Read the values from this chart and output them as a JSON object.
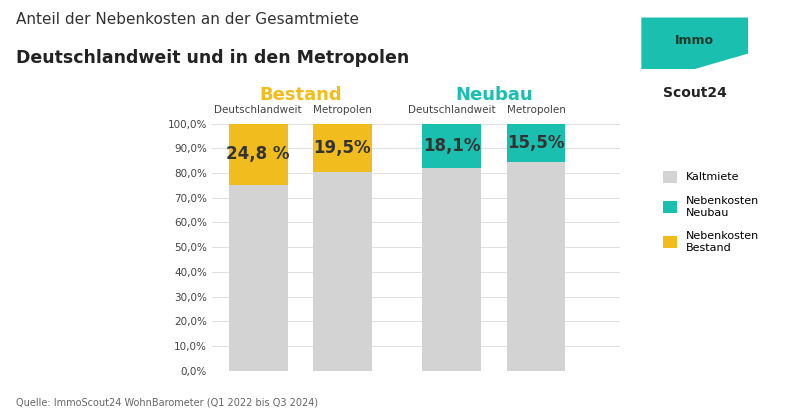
{
  "title_line1": "Anteil der Nebenkosten an der Gesamtmiete",
  "title_line2": "Deutschlandweit und in den Metropolen",
  "subtitle_bestand": "Bestand",
  "subtitle_neubau": "Neubau",
  "col_labels": [
    "Deutschlandweit",
    "Metropolen",
    "Deutschlandweit",
    "Metropolen"
  ],
  "kaltmiete": [
    75.2,
    80.5,
    81.9,
    84.5
  ],
  "nebenkosten_bestand": [
    24.8,
    19.5,
    0,
    0
  ],
  "nebenkosten_neubau": [
    0,
    0,
    18.1,
    15.5
  ],
  "bar_labels": [
    "24,8 %",
    "19,5%",
    "18,1%",
    "15,5%"
  ],
  "color_kaltmiete": "#d3d3d3",
  "color_neubau": "#1bbfb0",
  "color_bestand": "#f0bc1e",
  "color_bg": "#ffffff",
  "source_text": "Quelle: ImmoScout24 WohnBarometer (Q1 2022 bis Q3 2024)",
  "legend_labels": [
    "Kaltmiete",
    "Nebenkosten\nNeubau",
    "Nebenkosten\nBestand"
  ],
  "ylim": [
    0,
    100
  ],
  "yticks": [
    0,
    10,
    20,
    30,
    40,
    50,
    60,
    70,
    80,
    90,
    100
  ],
  "ytick_labels": [
    "0,0%",
    "10,0%",
    "20,0%",
    "30,0%",
    "40,0%",
    "50,0%",
    "60,0%",
    "70,0%",
    "80,0%",
    "90,0%",
    "100,0%"
  ],
  "bar_positions": [
    0,
    1,
    2.3,
    3.3
  ],
  "bar_width": 0.7,
  "xlim": [
    -0.55,
    4.3
  ],
  "label_fontsize": 12,
  "label_color": "#333333"
}
